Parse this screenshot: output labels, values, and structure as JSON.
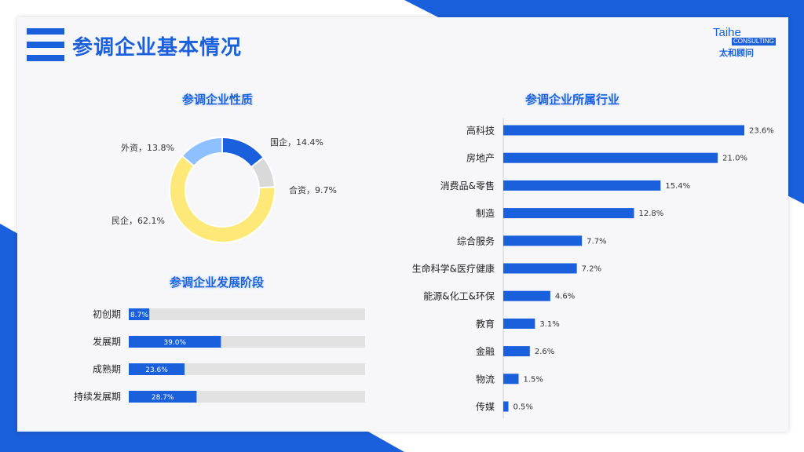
{
  "page": {
    "title": "参调企业基本情况"
  },
  "logo": {
    "line1": "Taihe",
    "line2": "CONSULTING",
    "line3": "太和顾问"
  },
  "sections": {
    "nature": "参调企业性质",
    "stage": "参调企业发展阶段",
    "industry": "参调企业所属行业"
  },
  "colors": {
    "brand": "#1a5fdc",
    "track": "#e2e2e2",
    "yellow": "#fde878",
    "light_blue": "#8ec0ff",
    "grey": "#d9d9d9"
  },
  "chart_data": [
    {
      "type": "pie",
      "title": "参调企业性质",
      "slices": [
        {
          "name": "国企",
          "value": 14.4,
          "label": "国企，14.4%",
          "color": "#1a5fdc"
        },
        {
          "name": "合资",
          "value": 9.7,
          "label": "合资，9.7%",
          "color": "#d9d9d9"
        },
        {
          "name": "民企",
          "value": 62.1,
          "label": "民企，62.1%",
          "color": "#fde878"
        },
        {
          "name": "外资",
          "value": 13.8,
          "label": "外资，13.8%",
          "color": "#8ec0ff"
        }
      ]
    },
    {
      "type": "bar",
      "orientation": "horizontal",
      "title": "参调企业发展阶段",
      "xlim": [
        0,
        100
      ],
      "categories": [
        "初创期",
        "发展期",
        "成熟期",
        "持续发展期"
      ],
      "values": [
        8.7,
        39.0,
        23.6,
        28.7
      ],
      "labels": [
        "8.7%",
        "39.0%",
        "23.6%",
        "28.7%"
      ]
    },
    {
      "type": "bar",
      "orientation": "horizontal",
      "title": "参调企业所属行业",
      "categories": [
        "高科技",
        "房地产",
        "消费品&零售",
        "制造",
        "综合服务",
        "生命科学&医疗健康",
        "能源&化工&环保",
        "教育",
        "金融",
        "物流",
        "传媒"
      ],
      "values": [
        23.6,
        21.0,
        15.4,
        12.8,
        7.7,
        7.2,
        4.6,
        3.1,
        2.6,
        1.5,
        0.5
      ],
      "labels": [
        "23.6%",
        "21.0%",
        "15.4%",
        "12.8%",
        "7.7%",
        "7.2%",
        "4.6%",
        "3.1%",
        "2.6%",
        "1.5%",
        "0.5%"
      ]
    }
  ]
}
